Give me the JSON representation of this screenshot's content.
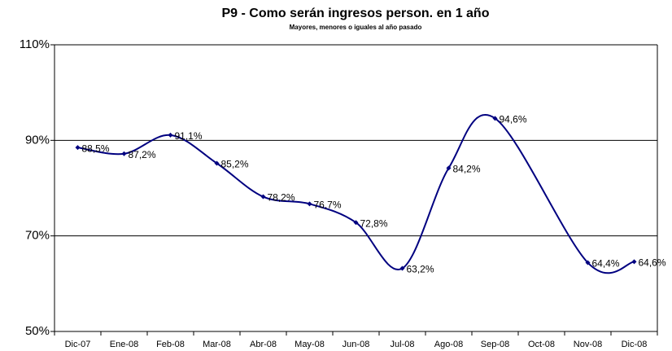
{
  "chart_data": {
    "type": "line",
    "title": "P9 - Como serán ingresos person. en 1 año",
    "subtitle": "Mayores, menores o iguales al año pasado",
    "categories": [
      "Dic-07",
      "Ene-08",
      "Feb-08",
      "Mar-08",
      "Abr-08",
      "May-08",
      "Jun-08",
      "Jul-08",
      "Ago-08",
      "Sep-08",
      "Oct-08",
      "Nov-08",
      "Dic-08"
    ],
    "series": [
      {
        "name": "P9",
        "color": "#000080",
        "values": [
          88.5,
          87.2,
          91.1,
          85.2,
          78.2,
          76.7,
          72.8,
          63.2,
          84.2,
          94.6,
          null,
          64.4,
          64.6
        ],
        "value_labels": [
          "88,5%",
          "87,2%",
          "91,1%",
          "85,2%",
          "78,2%",
          "76,7%",
          "72,8%",
          "63,2%",
          "84,2%",
          "94,6%",
          null,
          "64,4%",
          "64,6%"
        ]
      }
    ],
    "ylim": [
      50,
      110
    ],
    "yticks": [
      {
        "value": 50,
        "label": "50%"
      },
      {
        "value": 70,
        "label": "70%"
      },
      {
        "value": 90,
        "label": "90%"
      },
      {
        "value": 110,
        "label": "110%"
      }
    ],
    "grid": true
  }
}
